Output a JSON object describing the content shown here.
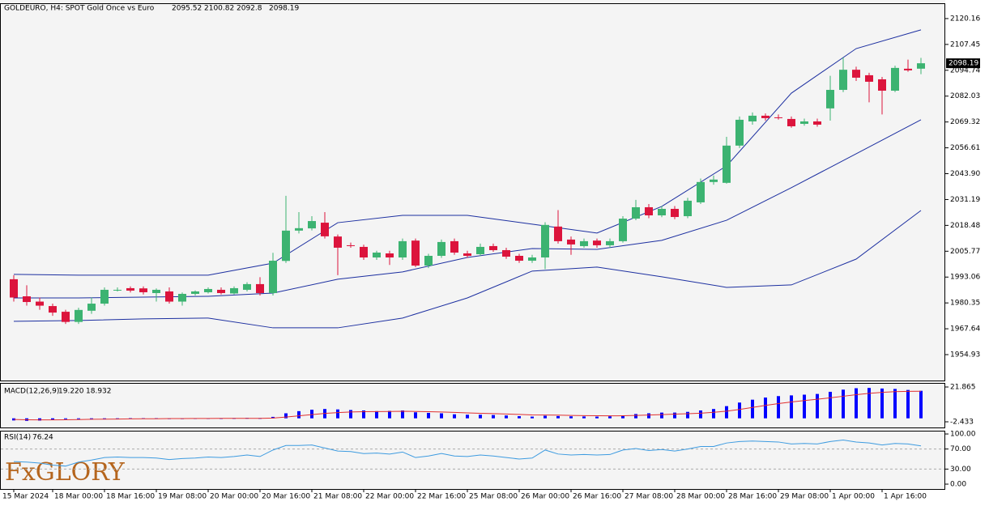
{
  "chart_data": [
    {
      "type": "candlestick",
      "title": "GOLDEURO, H4:  SPOT Gold Once vs Euro",
      "categories": [
        "15 Mar 2024",
        null,
        null,
        "18 Mar 00:00",
        null,
        null,
        null,
        "18 Mar 16:00",
        null,
        null,
        null,
        "19 Mar 08:00",
        null,
        null,
        null,
        "20 Mar 00:00",
        null,
        null,
        null,
        "20 Mar 16:00",
        null,
        null,
        null,
        "21 Mar 08:00",
        null,
        null,
        null,
        "22 Mar 00:00",
        null,
        null,
        null,
        "22 Mar 16:00",
        null,
        null,
        null,
        "25 Mar 08:00",
        null,
        null,
        null,
        "26 Mar 00:00",
        null,
        null,
        null,
        "26 Mar 16:00",
        null,
        null,
        null,
        "27 Mar 08:00",
        null,
        null,
        null,
        "28 Mar 00:00",
        null,
        null,
        null,
        "28 Mar 16:00",
        null,
        null,
        null,
        "29 Mar 08:00",
        null,
        null,
        null,
        "1 Apr 00:00",
        null,
        null,
        null,
        "1 Apr 16:00",
        null,
        null,
        null
      ],
      "open": [
        1992,
        1983.6,
        1981,
        1978.8,
        1976,
        1971,
        1976.5,
        1980,
        1986.5,
        1987.6,
        1987.5,
        1985.2,
        1986,
        1981,
        1984.8,
        1985.6,
        1986.8,
        1985,
        1986.8,
        1989.6,
        1985.2,
        2001,
        2015.9,
        2017,
        2019.8,
        2013,
        2008.7,
        2007.9,
        2002.7,
        2004.7,
        2002.7,
        2011,
        1998.7,
        2003.5,
        2010.7,
        2004.7,
        2004.3,
        2008.3,
        2006.3,
        2003.5,
        2001.1,
        2002.7,
        2017.9,
        2011.5,
        2008.3,
        2011,
        2008.7,
        2010.7,
        2021.8,
        2027.4,
        2023.4,
        2026.6,
        2023,
        2029.8,
        2039.8,
        2039.4,
        2057.7,
        2069.6,
        2072.4,
        2071.6,
        2070.8,
        2068.4,
        2069.6,
        2076,
        2085.1,
        2095,
        2092.3,
        2090.3,
        2084.7,
        2095.5,
        2095.52
      ],
      "high": [
        1994,
        1989,
        1983,
        1980,
        1977,
        1978,
        1983,
        1988,
        1988,
        1988.5,
        1988.5,
        1987.5,
        1988,
        1985.5,
        1986.5,
        1988,
        1988,
        1988.5,
        1990.5,
        1993,
        2005,
        2033,
        2025,
        2023,
        2025,
        2014,
        2010,
        2009,
        2006,
        2006,
        2012,
        2012,
        2004.5,
        2011.5,
        2012,
        2006,
        2009.5,
        2009.5,
        2007.5,
        2004.5,
        2004,
        2020,
        2026,
        2013,
        2012,
        2012,
        2012,
        2023,
        2031,
        2029,
        2028,
        2028,
        2032,
        2041.5,
        2043,
        2062,
        2072,
        2074,
        2073.5,
        2073,
        2072,
        2071,
        2071,
        2092,
        2101,
        2096.5,
        2093.5,
        2091.5,
        2097,
        2100,
        2100.82
      ],
      "low": [
        1981,
        1979,
        1977,
        1974,
        1970,
        1970,
        1975,
        1979,
        1986,
        1985.5,
        1984.5,
        1981,
        1980,
        1979,
        1984,
        1985,
        1984.5,
        1984.5,
        1986,
        1984,
        1984,
        2000,
        2014.5,
        2016,
        2012,
        1994,
        2007.5,
        2001.5,
        2001.5,
        1999,
        2001.5,
        1998,
        1997.5,
        2002.5,
        2004,
        2002.5,
        2003.5,
        2005.5,
        2002,
        2000,
        2000,
        1997,
        2009.5,
        2004,
        2007.5,
        2007.5,
        2007.5,
        2010,
        2021,
        2022,
        2022.5,
        2021.5,
        2022,
        2029,
        2038.5,
        2039,
        2056.5,
        2068,
        2070,
        2070.5,
        2066.5,
        2067.5,
        2067,
        2070,
        2084,
        2089.5,
        2079,
        2073,
        2084,
        2094,
        2092.8
      ],
      "close": [
        1983,
        1980.8,
        1979,
        1975.6,
        1971,
        1976.9,
        1980,
        1986.8,
        1986.8,
        1986.4,
        1985.6,
        1986.8,
        1981,
        1984.8,
        1986,
        1987.2,
        1985.2,
        1987.6,
        1989.6,
        1985.2,
        2001.1,
        2015.9,
        2017.1,
        2020.6,
        2013.1,
        2007.5,
        2008.3,
        2002.7,
        2005.1,
        2002.7,
        2010.7,
        1998.7,
        2003.5,
        2010.3,
        2005.1,
        2003.5,
        2007.9,
        2006.3,
        2003.1,
        2001.1,
        2002.7,
        2018.7,
        2010.7,
        2009.1,
        2010.7,
        2008.7,
        2010.7,
        2021.8,
        2027.4,
        2023.4,
        2026.6,
        2022.6,
        2030.6,
        2039.8,
        2041,
        2057.7,
        2070.4,
        2072.4,
        2071.2,
        2071.4,
        2067.2,
        2069.6,
        2068,
        2085.1,
        2095,
        2091.1,
        2089.1,
        2084.7,
        2095.9,
        2094.7,
        2098.19
      ],
      "up_color": "#3cb371",
      "down_color": "#dc143c",
      "bands": [
        {
          "color": "#1c2fa0",
          "x": [
            0,
            5,
            10,
            15,
            20,
            25,
            30,
            35,
            40,
            45,
            50,
            55,
            60,
            65,
            70
          ],
          "values": [
            1994.4,
            1994,
            1994,
            1994,
            1999.9,
            2019.8,
            2023.4,
            2023.4,
            2019.1,
            2014.7,
            2027.8,
            2047.7,
            2083.5,
            2105.4,
            2114.6
          ]
        },
        {
          "color": "#1c2fa0",
          "x": [
            0,
            5,
            10,
            15,
            20,
            25,
            30,
            35,
            40,
            45,
            50,
            55,
            60,
            65,
            70
          ],
          "values": [
            1982.8,
            1982.8,
            1983.2,
            1983.6,
            1985.2,
            1992,
            1995.6,
            2002.7,
            2007.1,
            2006.7,
            2011.1,
            2021,
            2037,
            2053.7,
            2070.4
          ]
        },
        {
          "color": "#1c2fa0",
          "x": [
            0,
            5,
            10,
            15,
            20,
            25,
            30,
            35,
            40,
            45,
            50,
            55,
            60,
            65,
            70
          ],
          "values": [
            1971.3,
            1971.7,
            1972.5,
            1972.9,
            1968.1,
            1968.1,
            1972.9,
            1982.8,
            1996,
            1998,
            1993.2,
            1988,
            1989.2,
            2001.9,
            2025.8
          ]
        }
      ],
      "ylim": [
        1942.2,
        2127.7
      ],
      "yticks": [
        2120.16,
        2107.45,
        2094.74,
        2082.03,
        2069.32,
        2056.61,
        {
          "value": 2043.9,
          "label": "2043.90"
        },
        2031.19,
        2018.48,
        2005.77,
        1993.06,
        1980.35,
        1967.64,
        1954.93
      ]
    },
    {
      "type": "macd",
      "title": "MACD(12,26,9)",
      "current_labels": [
        "19.220",
        "18.932"
      ],
      "series": [
        {
          "color": "#0000ff",
          "values": [
            -1.5,
            -1.8,
            -1.6,
            -1,
            -0.6,
            -0.3,
            -0.2,
            -0.1,
            0,
            0.1,
            0.1,
            0.1,
            0,
            0,
            0.1,
            0.1,
            0.1,
            0.2,
            0.3,
            0.2,
            1,
            3.5,
            5,
            6,
            6.5,
            6.2,
            5.8,
            5.5,
            5,
            5.2,
            5.5,
            4.2,
            3.8,
            3.5,
            2.8,
            2.5,
            2.5,
            2.3,
            2,
            1.5,
            1.2,
            1.8,
            1.6,
            1.4,
            1.3,
            1.2,
            1.4,
            2,
            3,
            3.5,
            4,
            4,
            4.5,
            5.5,
            6.5,
            8.5,
            11,
            13,
            14.5,
            15.5,
            16,
            16.5,
            17,
            18.5,
            20,
            21,
            21.2,
            20.8,
            20.5,
            19.8,
            19.22
          ]
        },
        {
          "color": "#e03030",
          "values": [
            -0.8,
            -1,
            -1.1,
            -1.1,
            -1,
            -0.9,
            -0.7,
            -0.6,
            -0.5,
            -0.4,
            -0.3,
            -0.3,
            -0.2,
            -0.2,
            -0.1,
            -0.1,
            0,
            0,
            0,
            0,
            0.2,
            0.9,
            1.7,
            2.6,
            3.4,
            4,
            4.4,
            4.6,
            4.7,
            4.8,
            4.9,
            4.8,
            4.6,
            4.4,
            4.1,
            3.8,
            3.5,
            3.3,
            3,
            2.7,
            2.4,
            2.3,
            2.2,
            2,
            1.9,
            1.8,
            1.7,
            1.8,
            2,
            2.3,
            2.6,
            2.9,
            3.2,
            3.6,
            4.2,
            5,
            6.2,
            7.6,
            9,
            10.3,
            11.4,
            12.4,
            13.3,
            14.3,
            15.4,
            16.5,
            17.4,
            18.1,
            18.6,
            18.8,
            18.932
          ]
        }
      ],
      "ylim": [
        -6.39,
        24.69
      ],
      "yticks": [
        21.865,
        -2.433
      ]
    },
    {
      "type": "line",
      "title": "RSI(14)",
      "color": "#3d9be0",
      "values": [
        45,
        44,
        42,
        38,
        36,
        44,
        48,
        53,
        54,
        53,
        53,
        52,
        49,
        51,
        52,
        54,
        53,
        55,
        58,
        55,
        68,
        77,
        77,
        78,
        72,
        66,
        65,
        61,
        62,
        60,
        64,
        53,
        56,
        61,
        56,
        55,
        58,
        56,
        53,
        50,
        52,
        68,
        60,
        58,
        59,
        58,
        59,
        68,
        71,
        67,
        69,
        66,
        70,
        75,
        75,
        82,
        85,
        86,
        85,
        84,
        80,
        81,
        80,
        85,
        88,
        84,
        82,
        78,
        81,
        80,
        76.24
      ],
      "ylim": [
        -9.7,
        106.5
      ],
      "yticks": [
        {
          "value": 100,
          "label": "100.00"
        },
        {
          "value": 70,
          "label": "70.00"
        },
        {
          "value": 30,
          "label": "30.00"
        },
        {
          "value": 0,
          "label": "0.00"
        }
      ],
      "grid": "dashed"
    }
  ],
  "logo": "FxGLORY"
}
